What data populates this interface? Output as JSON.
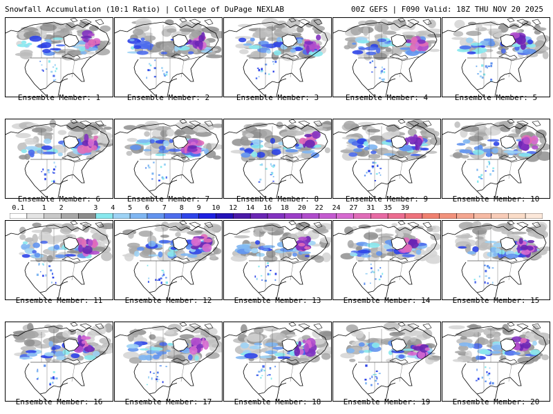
{
  "header": {
    "left": "Snowfall Accumulation (10:1 Ratio) | College of DuPage NEXLAB",
    "right": "00Z GEFS | F090 Valid: 18Z THU NOV 20 2025"
  },
  "members": [
    {
      "label": "Ensemble Member: 1"
    },
    {
      "label": "Ensemble Member: 2"
    },
    {
      "label": "Ensemble Member: 3"
    },
    {
      "label": "Ensemble Member: 4"
    },
    {
      "label": "Ensemble Member: 5"
    },
    {
      "label": "Ensemble Member: 6"
    },
    {
      "label": "Ensemble Member: 7"
    },
    {
      "label": "Ensemble Member: 8"
    },
    {
      "label": "Ensemble Member: 9"
    },
    {
      "label": "Ensemble Member: 10"
    },
    {
      "label": "Ensemble Member: 11"
    },
    {
      "label": "Ensemble Member: 12"
    },
    {
      "label": "Ensemble Member: 13"
    },
    {
      "label": "Ensemble Member: 14"
    },
    {
      "label": "Ensemble Member: 15"
    },
    {
      "label": "Ensemble Member: 16"
    },
    {
      "label": "Ensemble Member: 17"
    },
    {
      "label": "Ensemble Member: 18"
    },
    {
      "label": "Ensemble Member: 19"
    },
    {
      "label": "Ensemble Member: 20"
    }
  ],
  "colorbar": {
    "labels": [
      "0.1",
      "1",
      "2",
      "3",
      "4",
      "5",
      "6",
      "7",
      "8",
      "9",
      "10",
      "12",
      "14",
      "16",
      "18",
      "20",
      "22",
      "24",
      "27",
      "31",
      "35",
      "39"
    ],
    "colors": [
      "#ffffff",
      "#e4e4e4",
      "#c8c8c8",
      "#a8a8a8",
      "#8c8c8c",
      "#88e8ee",
      "#9ed3f5",
      "#7fb6f2",
      "#6293ee",
      "#4d6cec",
      "#2e44e8",
      "#1e20e0",
      "#2412b8",
      "#4b1aa8",
      "#6a26b4",
      "#8232c0",
      "#9c3ec8",
      "#b04ccc",
      "#c45ad0",
      "#d66ad0",
      "#e06cb8",
      "#e86aa4",
      "#ec6c90",
      "#ee727c",
      "#f08070",
      "#f2927c",
      "#f4a690",
      "#f6baa4",
      "#f8ccb8",
      "#fadcc8",
      "#fce8da"
    ]
  }
}
